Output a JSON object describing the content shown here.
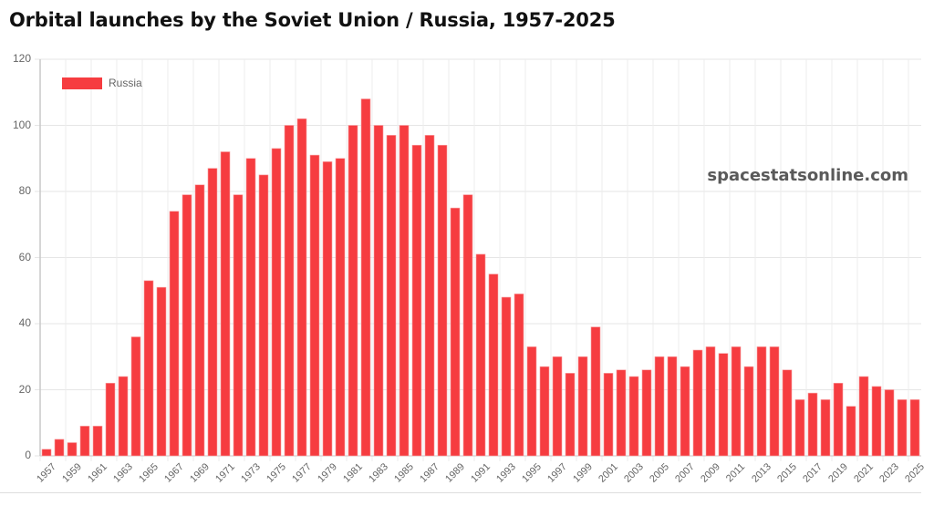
{
  "title": "Orbital launches by the Soviet Union / Russia, 1957-2025",
  "watermark": "spacestatsonline.com",
  "legend": {
    "label": "Russia",
    "color": "#f63c40"
  },
  "chart_data": {
    "type": "bar",
    "title": "Orbital launches by the Soviet Union / Russia, 1957-2025",
    "xlabel": "",
    "ylabel": "",
    "ylim": [
      0,
      120
    ],
    "yticks": [
      0,
      20,
      40,
      60,
      80,
      100,
      120
    ],
    "grid": true,
    "legend_position": "top-left",
    "categories": [
      1957,
      1958,
      1959,
      1960,
      1961,
      1962,
      1963,
      1964,
      1965,
      1966,
      1967,
      1968,
      1969,
      1970,
      1971,
      1972,
      1973,
      1974,
      1975,
      1976,
      1977,
      1978,
      1979,
      1980,
      1981,
      1982,
      1983,
      1984,
      1985,
      1986,
      1987,
      1988,
      1989,
      1990,
      1991,
      1992,
      1993,
      1994,
      1995,
      1996,
      1997,
      1998,
      1999,
      2000,
      2001,
      2002,
      2003,
      2004,
      2005,
      2006,
      2007,
      2008,
      2009,
      2010,
      2011,
      2012,
      2013,
      2014,
      2015,
      2016,
      2017,
      2018,
      2019,
      2020,
      2021,
      2022,
      2023,
      2024,
      2025
    ],
    "xtick_labels": [
      "1957",
      "1959",
      "1961",
      "1963",
      "1965",
      "1967",
      "1969",
      "1971",
      "1973",
      "1975",
      "1977",
      "1979",
      "1981",
      "1983",
      "1985",
      "1987",
      "1989",
      "1991",
      "1993",
      "1995",
      "1997",
      "1999",
      "2001",
      "2003",
      "2005",
      "2007",
      "2009",
      "2011",
      "2013",
      "2015",
      "2017",
      "2019",
      "2021",
      "2023",
      "2025"
    ],
    "series": [
      {
        "name": "Russia",
        "color": "#f63c40",
        "values": [
          2,
          5,
          4,
          9,
          9,
          22,
          24,
          36,
          53,
          51,
          74,
          79,
          82,
          87,
          92,
          79,
          90,
          85,
          93,
          100,
          102,
          91,
          89,
          90,
          100,
          108,
          100,
          97,
          100,
          94,
          97,
          94,
          75,
          79,
          61,
          55,
          48,
          49,
          33,
          27,
          30,
          25,
          30,
          39,
          25,
          26,
          24,
          26,
          30,
          30,
          27,
          32,
          33,
          31,
          33,
          27,
          33,
          33,
          26,
          17,
          19,
          17,
          22,
          15,
          24,
          21,
          20,
          17,
          17
        ]
      }
    ]
  }
}
